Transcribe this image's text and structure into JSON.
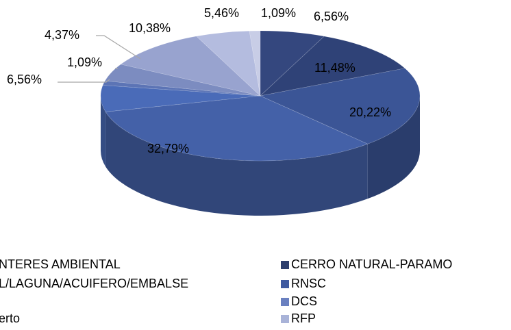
{
  "chart_data": {
    "type": "pie3d",
    "values": [
      6.56,
      11.48,
      20.22,
      32.79,
      6.56,
      1.09,
      4.37,
      10.38,
      5.46,
      1.09
    ],
    "value_labels": [
      "6,56%",
      "11,48%",
      "20,22%",
      "32,79%",
      "6,56%",
      "1,09%",
      "4,37%",
      "10,38%",
      "5,46%",
      "1,09%"
    ],
    "colors": [
      "#34477e",
      "#2f4277",
      "#3b5596",
      "#4461a8",
      "#4a6bb8",
      "#5c74b5",
      "#7c8cc0",
      "#98a3cf",
      "#b4bcdf",
      "#c8cde6"
    ],
    "legend": [
      {
        "name": "NTERES AMBIENTAL"
      },
      {
        "name": "L/LAGUNA/ACUIFERO/EMBALSE"
      },
      {
        "name": "erto"
      },
      {
        "name": "CERRO NATURAL-PARAMO",
        "color": "#2e3f6e"
      },
      {
        "name": "RNSC",
        "color": "#3f5aa0"
      },
      {
        "name": "DCS",
        "color": "#6a80c0"
      },
      {
        "name": "RFP",
        "color": "#a9b3d8"
      }
    ]
  }
}
